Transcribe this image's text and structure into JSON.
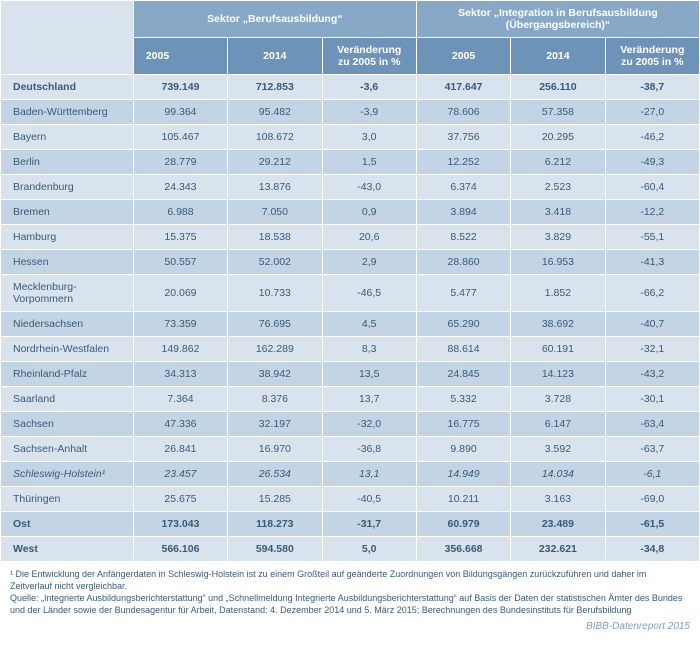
{
  "table": {
    "header": {
      "sector1": "Sektor „Berufsausbildung“",
      "sector2": "Sektor „Integration in Berufsausbildung (Übergangsbereich)“",
      "y2005": "2005",
      "y2014": "2014",
      "change": "Veränderung zu 2005 in %"
    },
    "rows": [
      {
        "region": "Deutschland",
        "s1_2005": "739.149",
        "s1_2014": "712.853",
        "s1_chg": "-3,6",
        "s2_2005": "417.647",
        "s2_2014": "256.110",
        "s2_chg": "-38,7",
        "bold": true
      },
      {
        "region": "Baden-Württemberg",
        "s1_2005": "99.364",
        "s1_2014": "95.482",
        "s1_chg": "-3,9",
        "s2_2005": "78.606",
        "s2_2014": "57.358",
        "s2_chg": "-27,0"
      },
      {
        "region": "Bayern",
        "s1_2005": "105.467",
        "s1_2014": "108.672",
        "s1_chg": "3,0",
        "s2_2005": "37.756",
        "s2_2014": "20.295",
        "s2_chg": "-46,2"
      },
      {
        "region": "Berlin",
        "s1_2005": "28.779",
        "s1_2014": "29.212",
        "s1_chg": "1,5",
        "s2_2005": "12.252",
        "s2_2014": "6.212",
        "s2_chg": "-49,3"
      },
      {
        "region": "Brandenburg",
        "s1_2005": "24.343",
        "s1_2014": "13.876",
        "s1_chg": "-43,0",
        "s2_2005": "6.374",
        "s2_2014": "2.523",
        "s2_chg": "-60,4"
      },
      {
        "region": "Bremen",
        "s1_2005": "6.988",
        "s1_2014": "7.050",
        "s1_chg": "0,9",
        "s2_2005": "3.894",
        "s2_2014": "3.418",
        "s2_chg": "-12,2"
      },
      {
        "region": "Hamburg",
        "s1_2005": "15.375",
        "s1_2014": "18.538",
        "s1_chg": "20,6",
        "s2_2005": "8.522",
        "s2_2014": "3.829",
        "s2_chg": "-55,1"
      },
      {
        "region": "Hessen",
        "s1_2005": "50.557",
        "s1_2014": "52.002",
        "s1_chg": "2,9",
        "s2_2005": "28.860",
        "s2_2014": "16.953",
        "s2_chg": "-41,3"
      },
      {
        "region": "Mecklenburg-Vorpommern",
        "s1_2005": "20.069",
        "s1_2014": "10.733",
        "s1_chg": "-46,5",
        "s2_2005": "5.477",
        "s2_2014": "1.852",
        "s2_chg": "-66,2"
      },
      {
        "region": "Niedersachsen",
        "s1_2005": "73.359",
        "s1_2014": "76.695",
        "s1_chg": "4,5",
        "s2_2005": "65.290",
        "s2_2014": "38.692",
        "s2_chg": "-40,7"
      },
      {
        "region": "Nordrhein-Westfalen",
        "s1_2005": "149.862",
        "s1_2014": "162.289",
        "s1_chg": "8,3",
        "s2_2005": "88.614",
        "s2_2014": "60.191",
        "s2_chg": "-32,1"
      },
      {
        "region": "Rheinland-Pfalz",
        "s1_2005": "34.313",
        "s1_2014": "38.942",
        "s1_chg": "13,5",
        "s2_2005": "24.845",
        "s2_2014": "14.123",
        "s2_chg": "-43,2"
      },
      {
        "region": "Saarland",
        "s1_2005": "7.364",
        "s1_2014": "8.376",
        "s1_chg": "13,7",
        "s2_2005": "5.332",
        "s2_2014": "3.728",
        "s2_chg": "-30,1"
      },
      {
        "region": "Sachsen",
        "s1_2005": "47.336",
        "s1_2014": "32.197",
        "s1_chg": "-32,0",
        "s2_2005": "16.775",
        "s2_2014": "6.147",
        "s2_chg": "-63,4"
      },
      {
        "region": "Sachsen-Anhalt",
        "s1_2005": "26.841",
        "s1_2014": "16.970",
        "s1_chg": "-36,8",
        "s2_2005": "9.890",
        "s2_2014": "3.592",
        "s2_chg": "-63,7"
      },
      {
        "region": "Schleswig-Holstein¹",
        "s1_2005": "23.457",
        "s1_2014": "26.534",
        "s1_chg": "13,1",
        "s2_2005": "14.949",
        "s2_2014": "14.034",
        "s2_chg": "-6,1",
        "italic": true
      },
      {
        "region": "Thüringen",
        "s1_2005": "25.675",
        "s1_2014": "15.285",
        "s1_chg": "-40,5",
        "s2_2005": "10.211",
        "s2_2014": "3.163",
        "s2_chg": "-69,0"
      },
      {
        "region": "Ost",
        "s1_2005": "173.043",
        "s1_2014": "118.273",
        "s1_chg": "-31,7",
        "s2_2005": "60.979",
        "s2_2014": "23.489",
        "s2_chg": "-61,5",
        "bold": true
      },
      {
        "region": "West",
        "s1_2005": "566.106",
        "s1_2014": "594.580",
        "s1_chg": "5,0",
        "s2_2005": "356.668",
        "s2_2014": "232.621",
        "s2_chg": "-34,8",
        "bold": true
      }
    ]
  },
  "footnotes": {
    "note1": "¹ Die Entwicklung der Anfängerdaten in Schleswig-Holstein ist zu einem Großteil auf geänderte Zuordnungen von Bildungsgängen zurückzuführen und daher im Zeitverlauf nicht vergleichbar.",
    "source": "Quelle: „Integrierte Ausbildungsberichterstattung“ und „Schnellmeldung Integrierte Ausbildungsberichterstattung“ auf Basis der Daten der statistischen Ämter des Bundes und der Länder sowie der Bundesagentur für Arbeit, Datenstand: 4. Dezember 2014 und 5. März 2015; Berechnungen des Bundesinstituts für Berufsbildung"
  },
  "report_tag": "BIBB-Datenreport 2015",
  "style": {
    "colors": {
      "header_group": "#88a8c8",
      "header_years": "#6e93b8",
      "row_even": "#d8e3ee",
      "row_odd": "#c3d4e5",
      "text": "#3a5a7a",
      "tag": "#7aa0c4",
      "border": "#ffffff"
    },
    "font_size_table": 10.5,
    "font_size_footnote": 9,
    "font_size_tag": 10
  }
}
